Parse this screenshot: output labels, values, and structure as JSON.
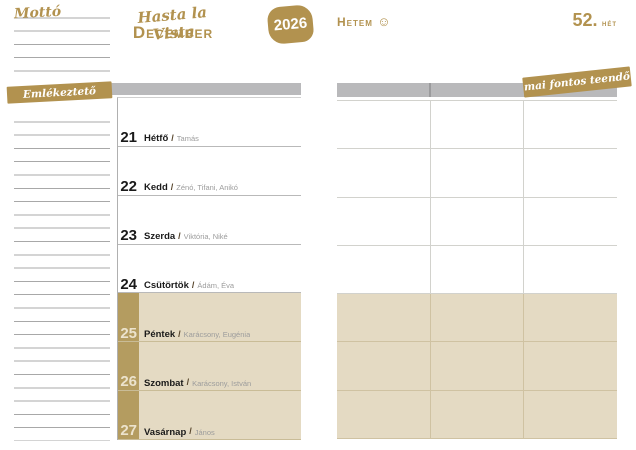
{
  "page": {
    "motto_label": "Mottó",
    "title_script": "Hasta la Vista",
    "title_month": "December",
    "year_badge": "2026",
    "hetem_label": "Hetem",
    "smiley_icon": "☺",
    "week_number": "52.",
    "week_unit": "hét",
    "reminder_banner": "Emlékeztető",
    "todo_banner": "mai fontos teendő",
    "day_separator": "/"
  },
  "days": [
    {
      "num": "21",
      "name": "Hétfő",
      "namedays": "Tamás",
      "weekend": false
    },
    {
      "num": "22",
      "name": "Kedd",
      "namedays": "Zénó, Tifani, Anikó",
      "weekend": false
    },
    {
      "num": "23",
      "name": "Szerda",
      "namedays": "Viktória, Niké",
      "weekend": false
    },
    {
      "num": "24",
      "name": "Csütörtök",
      "namedays": "Ádám, Éva",
      "weekend": false
    },
    {
      "num": "25",
      "name": "Péntek",
      "namedays": "Karácsony, Eugénia",
      "weekend": true
    },
    {
      "num": "26",
      "name": "Szombat",
      "namedays": "Karácsony, István",
      "weekend": true
    },
    {
      "num": "27",
      "name": "Vasárnap",
      "namedays": "János",
      "weekend": true
    }
  ],
  "colors": {
    "gold": "#b2924f",
    "weekend_beige": "#e4dac3",
    "weekend_stripe": "#b49c60",
    "header_gray": "#b9b9bb"
  }
}
